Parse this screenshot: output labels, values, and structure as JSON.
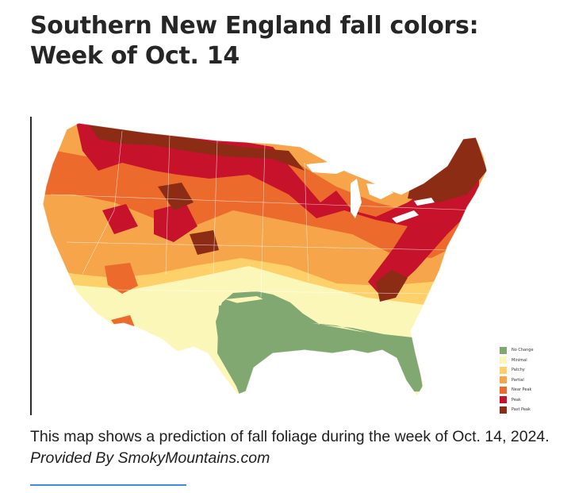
{
  "headline": {
    "line1": "Southern New England fall colors:",
    "line2": "Week of Oct. 14"
  },
  "map": {
    "legend": [
      {
        "label": "No Change",
        "color": "#82a872"
      },
      {
        "label": "Minimal",
        "color": "#fbf7b8"
      },
      {
        "label": "Patchy",
        "color": "#fdd06a"
      },
      {
        "label": "Partial",
        "color": "#f6a54a"
      },
      {
        "label": "Near Peak",
        "color": "#ec6a2c"
      },
      {
        "label": "Peak",
        "color": "#c6122a"
      },
      {
        "label": "Past Peak",
        "color": "#8c2c14"
      }
    ]
  },
  "caption": {
    "text": "This map shows a prediction of fall foliage during the week of Oct. 14, 2024.",
    "credit": "Provided By SmokyMountains.com"
  }
}
